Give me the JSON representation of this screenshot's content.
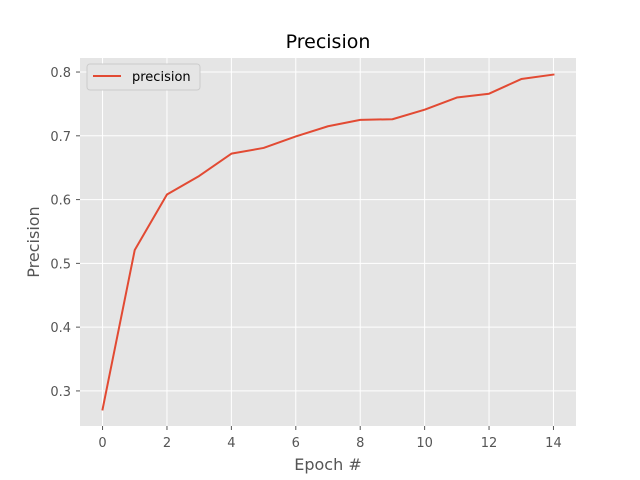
{
  "chart_data": {
    "type": "line",
    "title": "Precision",
    "xlabel": "Epoch #",
    "ylabel": "Precision",
    "x": [
      0,
      1,
      2,
      3,
      4,
      5,
      6,
      7,
      8,
      9,
      10,
      11,
      12,
      13,
      14
    ],
    "series": [
      {
        "name": "precision",
        "color": "#e24a33",
        "values": [
          0.271,
          0.521,
          0.608,
          0.637,
          0.672,
          0.681,
          0.699,
          0.715,
          0.725,
          0.726,
          0.741,
          0.76,
          0.766,
          0.789,
          0.796
        ]
      }
    ],
    "xlim": [
      -0.7,
      14.7
    ],
    "ylim": [
      0.245,
      0.822
    ],
    "xticks": [
      0,
      2,
      4,
      6,
      8,
      10,
      12,
      14
    ],
    "xtick_labels": [
      "0",
      "2",
      "4",
      "6",
      "8",
      "10",
      "12",
      "14"
    ],
    "yticks": [
      0.3,
      0.4,
      0.5,
      0.6,
      0.7,
      0.8
    ],
    "ytick_labels": [
      "0.3",
      "0.4",
      "0.5",
      "0.6",
      "0.7",
      "0.8"
    ],
    "grid": true,
    "legend_position": "upper-left",
    "style": {
      "axes_background": "#e5e5e5",
      "grid_color": "#ffffff",
      "tick_label_color": "#555555"
    }
  }
}
